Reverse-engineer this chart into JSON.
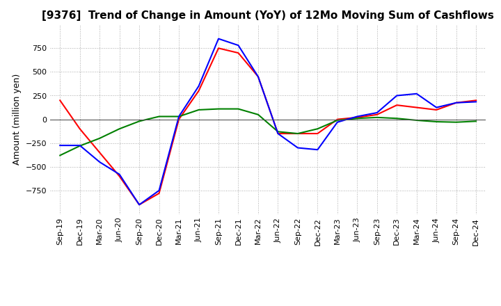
{
  "title": "[9376]  Trend of Change in Amount (YoY) of 12Mo Moving Sum of Cashflows",
  "ylabel": "Amount (million yen)",
  "x_labels": [
    "Sep-19",
    "Dec-19",
    "Mar-20",
    "Jun-20",
    "Sep-20",
    "Dec-20",
    "Mar-21",
    "Jun-21",
    "Sep-21",
    "Dec-21",
    "Mar-22",
    "Jun-22",
    "Sep-22",
    "Dec-22",
    "Mar-23",
    "Jun-23",
    "Sep-23",
    "Dec-23",
    "Mar-24",
    "Jun-24",
    "Sep-24",
    "Dec-24"
  ],
  "operating": [
    200,
    -100,
    -350,
    -600,
    -900,
    -780,
    0,
    300,
    750,
    700,
    450,
    -150,
    -150,
    -150,
    0,
    20,
    50,
    150,
    125,
    100,
    175,
    200
  ],
  "investing": [
    -380,
    -280,
    -200,
    -100,
    -20,
    30,
    30,
    100,
    110,
    110,
    50,
    -130,
    -150,
    -100,
    -10,
    10,
    20,
    10,
    -10,
    -25,
    -30,
    -20
  ],
  "free": [
    -275,
    -275,
    -450,
    -580,
    -900,
    -750,
    30,
    350,
    850,
    780,
    450,
    -150,
    -300,
    -320,
    -30,
    30,
    70,
    250,
    270,
    125,
    175,
    185
  ],
  "ylim": [
    -1000,
    1000
  ],
  "yticks": [
    -750,
    -500,
    -250,
    0,
    250,
    500,
    750
  ],
  "operating_color": "#ff0000",
  "investing_color": "#008000",
  "free_color": "#0000ff",
  "bg_color": "#ffffff",
  "grid_color": "#aaaaaa",
  "title_fontsize": 11,
  "label_fontsize": 9,
  "tick_fontsize": 8
}
